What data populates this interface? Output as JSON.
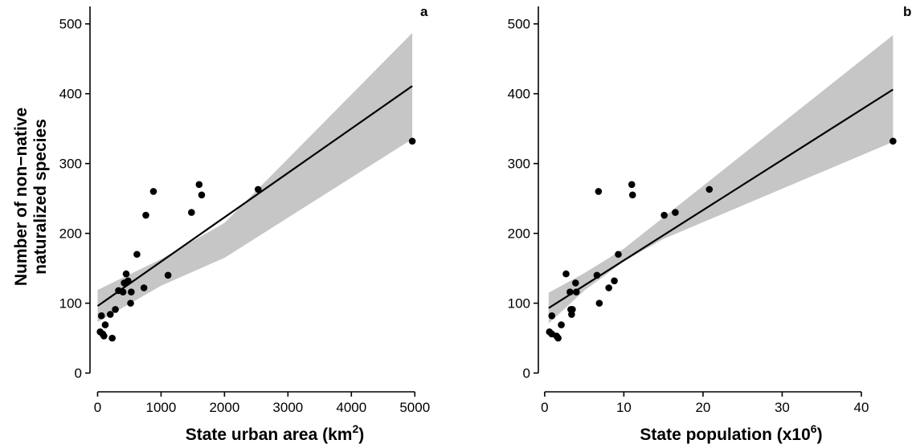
{
  "chart_data": [
    {
      "type": "scatter",
      "panel_label": "a",
      "xlabel": "State urban area (km",
      "xlabel_sup": "2",
      "xlabel_end": ")",
      "ylabel_line1": "Number of non−native",
      "ylabel_line2": "naturalized species",
      "xlim": [
        -120,
        5250
      ],
      "ylim": [
        -20,
        525
      ],
      "x_ticks": [
        0,
        1000,
        2000,
        3000,
        4000,
        5000
      ],
      "x_tick_labels": [
        "0",
        "1000",
        "2000",
        "3000",
        "4000",
        "5000"
      ],
      "y_ticks": [
        0,
        100,
        200,
        300,
        400,
        500
      ],
      "y_tick_labels": [
        "0",
        "100",
        "200",
        "300",
        "400",
        "500"
      ],
      "points": [
        {
          "x": 40,
          "y": 59
        },
        {
          "x": 80,
          "y": 56
        },
        {
          "x": 100,
          "y": 53
        },
        {
          "x": 120,
          "y": 69
        },
        {
          "x": 230,
          "y": 50
        },
        {
          "x": 60,
          "y": 82
        },
        {
          "x": 200,
          "y": 84
        },
        {
          "x": 280,
          "y": 91
        },
        {
          "x": 330,
          "y": 118
        },
        {
          "x": 400,
          "y": 116
        },
        {
          "x": 420,
          "y": 129
        },
        {
          "x": 450,
          "y": 142
        },
        {
          "x": 480,
          "y": 132
        },
        {
          "x": 520,
          "y": 100
        },
        {
          "x": 530,
          "y": 116
        },
        {
          "x": 620,
          "y": 170
        },
        {
          "x": 730,
          "y": 122
        },
        {
          "x": 760,
          "y": 226
        },
        {
          "x": 880,
          "y": 260
        },
        {
          "x": 1110,
          "y": 140
        },
        {
          "x": 1480,
          "y": 230
        },
        {
          "x": 1600,
          "y": 270
        },
        {
          "x": 1640,
          "y": 255
        },
        {
          "x": 2530,
          "y": 263
        },
        {
          "x": 4960,
          "y": 332
        }
      ],
      "fit": {
        "x": [
          0,
          4960
        ],
        "y": [
          96,
          411
        ]
      },
      "ci_band": {
        "x": [
          0,
          1000,
          2000,
          4960
        ],
        "lower": [
          73,
          125,
          165,
          335
        ],
        "upper": [
          119,
          163,
          215,
          487
        ]
      },
      "grid": false,
      "legend": "none"
    },
    {
      "type": "scatter",
      "panel_label": "b",
      "xlabel": "State population (x10",
      "xlabel_sup": "6",
      "xlabel_end": ")",
      "xlim": [
        -0.8,
        46.5
      ],
      "ylim": [
        -20,
        525
      ],
      "x_ticks": [
        0,
        10,
        20,
        30,
        40
      ],
      "x_tick_labels": [
        "0",
        "10",
        "20",
        "30",
        "40"
      ],
      "y_ticks": [
        0,
        100,
        200,
        300,
        400,
        500
      ],
      "y_tick_labels": [
        "0",
        "100",
        "200",
        "300",
        "400",
        "500"
      ],
      "points": [
        {
          "x": 0.6,
          "y": 59
        },
        {
          "x": 0.9,
          "y": 56
        },
        {
          "x": 1.5,
          "y": 53
        },
        {
          "x": 1.7,
          "y": 50
        },
        {
          "x": 2.1,
          "y": 69
        },
        {
          "x": 0.9,
          "y": 82
        },
        {
          "x": 2.7,
          "y": 142
        },
        {
          "x": 3.2,
          "y": 116
        },
        {
          "x": 3.3,
          "y": 91
        },
        {
          "x": 3.4,
          "y": 84
        },
        {
          "x": 3.5,
          "y": 91
        },
        {
          "x": 3.9,
          "y": 129
        },
        {
          "x": 4.0,
          "y": 116
        },
        {
          "x": 6.6,
          "y": 140
        },
        {
          "x": 6.8,
          "y": 260
        },
        {
          "x": 6.9,
          "y": 100
        },
        {
          "x": 8.1,
          "y": 122
        },
        {
          "x": 8.8,
          "y": 132
        },
        {
          "x": 9.3,
          "y": 170
        },
        {
          "x": 11.0,
          "y": 270
        },
        {
          "x": 11.1,
          "y": 255
        },
        {
          "x": 15.1,
          "y": 226
        },
        {
          "x": 16.5,
          "y": 230
        },
        {
          "x": 20.8,
          "y": 263
        },
        {
          "x": 44.0,
          "y": 332
        }
      ],
      "fit": {
        "x": [
          0.5,
          44.0
        ],
        "y": [
          93,
          406
        ]
      },
      "ci_band": {
        "x": [
          0.5,
          5,
          10,
          15,
          44.0
        ],
        "lower": [
          71,
          118,
          160,
          192,
          331
        ],
        "upper": [
          115,
          143,
          178,
          223,
          484
        ]
      },
      "grid": false,
      "legend": "none"
    }
  ]
}
